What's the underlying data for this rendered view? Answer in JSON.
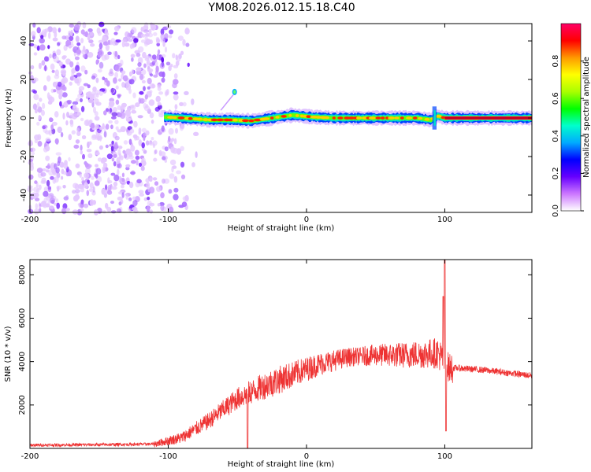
{
  "title": "YM08.2026.012.15.18.C40",
  "chart_data": [
    {
      "type": "heatmap",
      "title": "YM08.2026.012.15.18.C40",
      "xlabel": "Height of straight line (km)",
      "ylabel": "Frequency (Hz)",
      "xlim": [
        -200,
        163
      ],
      "ylim": [
        -49,
        49
      ],
      "xticks": [
        -200,
        -100,
        0,
        100
      ],
      "yticks": [
        -40,
        -20,
        0,
        20,
        40
      ],
      "colorbar": {
        "label": "Normalized spectral amplitude",
        "range": [
          0,
          1
        ],
        "ticks": [
          "0.0",
          "0.2",
          "0.4",
          "0.6",
          "0.8"
        ],
        "colors": [
          "#ffffff",
          "#cc77ff",
          "#6600ff",
          "#0000ff",
          "#00aaff",
          "#00ffcc",
          "#00ff00",
          "#aaff00",
          "#ffff00",
          "#ff9900",
          "#ff0000",
          "#ff0066"
        ]
      },
      "ridge": [
        {
          "x": -103,
          "f": 0.5
        },
        {
          "x": -90,
          "f": 0
        },
        {
          "x": -70,
          "f": -1
        },
        {
          "x": -55,
          "f": -1
        },
        {
          "x": -40,
          "f": -1.5
        },
        {
          "x": -25,
          "f": 0
        },
        {
          "x": -10,
          "f": 1.5
        },
        {
          "x": 5,
          "f": 0.5
        },
        {
          "x": 20,
          "f": 0
        },
        {
          "x": 40,
          "f": 0
        },
        {
          "x": 60,
          "f": 0
        },
        {
          "x": 80,
          "f": 0
        },
        {
          "x": 90,
          "f": -1
        },
        {
          "x": 95,
          "f": 1
        },
        {
          "x": 100,
          "f": 0
        },
        {
          "x": 163,
          "f": 0
        }
      ],
      "noise_region": [
        -200,
        -85
      ]
    },
    {
      "type": "line",
      "xlabel": "Height of straight line (km)",
      "ylabel": "SNR (10 * v/v)",
      "xlim": [
        -200,
        163
      ],
      "ylim": [
        0,
        8700
      ],
      "xticks": [
        -200,
        -100,
        0,
        100
      ],
      "yticks": [
        2000,
        4000,
        6000,
        8000
      ],
      "color": "#ee3333",
      "series": [
        {
          "name": "SNR",
          "x": [
            -200,
            -150,
            -110,
            -90,
            -70,
            -50,
            -30,
            -10,
            10,
            30,
            50,
            70,
            85,
            95,
            100,
            103,
            110,
            130,
            163
          ],
          "y": [
            150,
            170,
            200,
            500,
            1300,
            2300,
            2900,
            3400,
            3900,
            4200,
            4300,
            4300,
            4350,
            4400,
            4000,
            3700,
            3700,
            3600,
            3350
          ]
        }
      ],
      "annotations": [
        {
          "x": 100,
          "y": 8700,
          "note": "spike"
        },
        {
          "x": 101,
          "y": 800,
          "note": "dip"
        }
      ]
    }
  ]
}
